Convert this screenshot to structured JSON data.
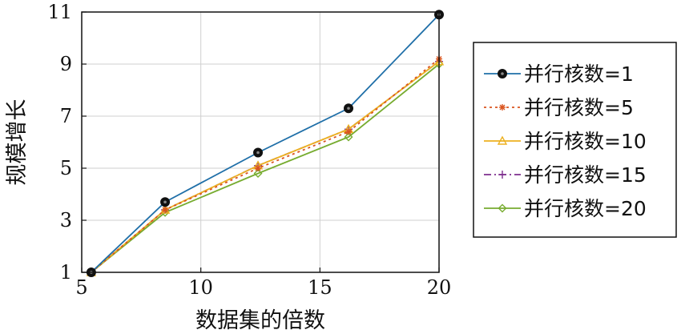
{
  "chart_data": {
    "type": "line",
    "xlabel": "数据集的倍数",
    "ylabel": "规模增长",
    "xlim": [
      5,
      20
    ],
    "ylim": [
      1,
      11
    ],
    "xticks": [
      5,
      10,
      15,
      20
    ],
    "yticks": [
      1,
      3,
      5,
      7,
      9,
      11
    ],
    "grid": true,
    "legend_position": "right",
    "series": [
      {
        "name": "并行核数=1",
        "color": "#1f6fa8",
        "dash": "solid",
        "marker": "circle-filled",
        "x": [
          5.4,
          8.5,
          12.4,
          16.2,
          20.0
        ],
        "y": [
          1.0,
          3.7,
          5.6,
          7.3,
          10.9
        ]
      },
      {
        "name": "并行核数=5",
        "color": "#d9541e",
        "dash": "dotted",
        "marker": "asterisk",
        "x": [
          5.4,
          8.5,
          12.4,
          16.2,
          20.0
        ],
        "y": [
          1.0,
          3.4,
          5.0,
          6.4,
          9.2
        ]
      },
      {
        "name": "并行核数=10",
        "color": "#edb120",
        "dash": "solid",
        "marker": "triangle",
        "x": [
          5.4,
          8.5,
          12.4,
          16.2,
          20.0
        ],
        "y": [
          1.0,
          3.4,
          5.1,
          6.5,
          9.1
        ]
      },
      {
        "name": "并行核数=15",
        "color": "#7e2f8e",
        "dash": "dashdot",
        "marker": "plus",
        "x": [
          5.4,
          8.5,
          12.4,
          16.2,
          20.0
        ],
        "y": [
          1.0,
          3.4,
          5.1,
          6.5,
          9.1
        ]
      },
      {
        "name": "并行核数=20",
        "color": "#77ac30",
        "dash": "solid",
        "marker": "diamond",
        "x": [
          5.4,
          8.5,
          12.4,
          16.2,
          20.0
        ],
        "y": [
          1.0,
          3.3,
          4.8,
          6.2,
          9.0
        ]
      }
    ]
  }
}
